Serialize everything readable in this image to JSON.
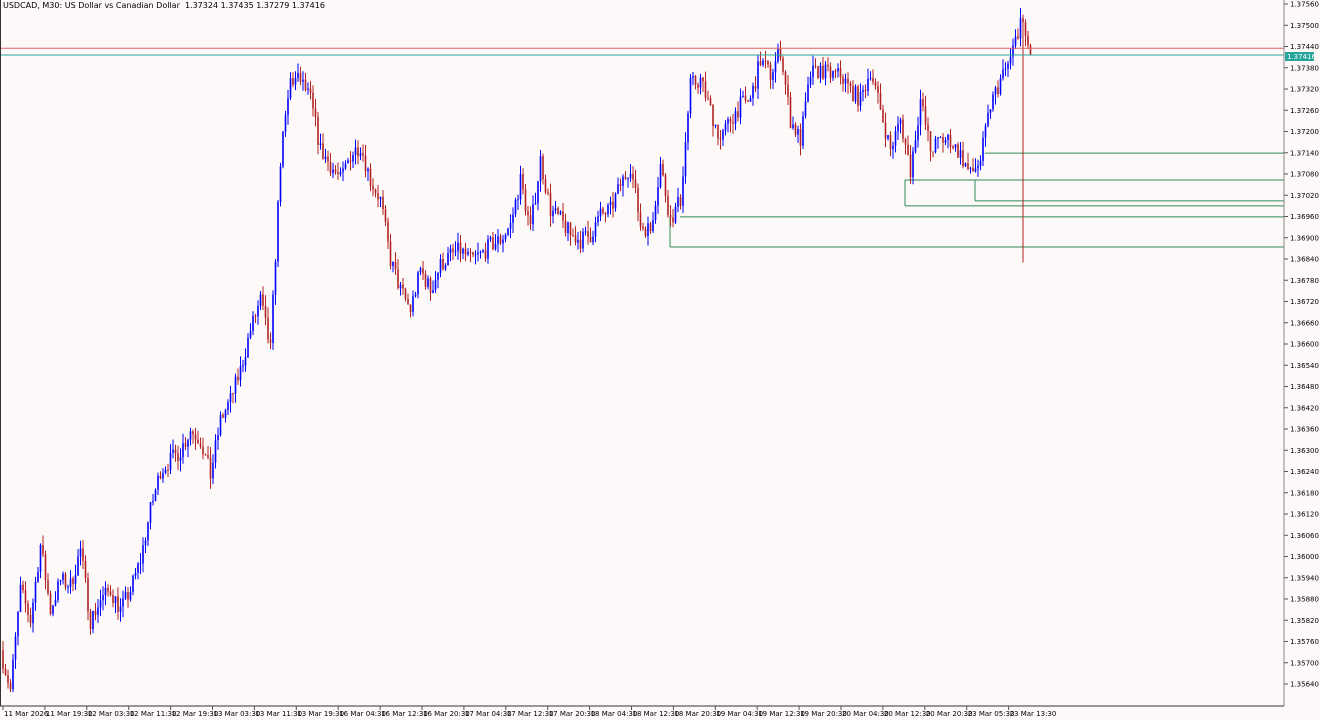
{
  "header": {
    "symbol": "USDCAD, M30:",
    "description": "US Dollar vs Canadian Dollar",
    "ohlc": "1.37324 1.37435 1.37279 1.37416"
  },
  "chart_data": {
    "type": "candlestick",
    "symbol": "USDCAD",
    "timeframe": "M30",
    "ylim": [
      1.3562,
      1.3757
    ],
    "y_ticks": [
      "1.37560",
      "1.37500",
      "1.37440",
      "1.37380",
      "1.37320",
      "1.37260",
      "1.37200",
      "1.37140",
      "1.37080",
      "1.37020",
      "1.36960",
      "1.36900",
      "1.36840",
      "1.36780",
      "1.36720",
      "1.36660",
      "1.36600",
      "1.36540",
      "1.36480",
      "1.36420",
      "1.36360",
      "1.36300",
      "1.36240",
      "1.36180",
      "1.36120",
      "1.36060",
      "1.36000",
      "1.35940",
      "1.35880",
      "1.35820",
      "1.35760",
      "1.35700",
      "1.35640"
    ],
    "x_ticks": [
      "11 Mar 2026",
      "11 Mar 19:30",
      "12 Mar 03:30",
      "12 Mar 11:30",
      "12 Mar 19:30",
      "13 Mar 03:30",
      "13 Mar 11:30",
      "13 Mar 19:30",
      "16 Mar 04:30",
      "16 Mar 12:30",
      "16 Mar 20:30",
      "17 Mar 04:30",
      "17 Mar 12:30",
      "17 Mar 20:30",
      "18 Mar 04:30",
      "18 Mar 12:30",
      "18 Mar 20:30",
      "19 Mar 04:30",
      "19 Mar 12:30",
      "19 Mar 20:30",
      "20 Mar 04:30",
      "20 Mar 12:30",
      "20 Mar 20:30",
      "23 Mar 05:30",
      "23 Mar 13:30"
    ],
    "close_path": [
      1.35736,
      1.35623,
      1.35905,
      1.3582,
      1.36032,
      1.35849,
      1.35933,
      1.35919,
      1.36018,
      1.3582,
      1.35877,
      1.35905,
      1.35849,
      1.35905,
      1.3599,
      1.36131,
      1.36244,
      1.36272,
      1.363,
      1.36357,
      1.36329,
      1.3623,
      1.36385,
      1.36442,
      1.36526,
      1.36639,
      1.36724,
      1.36583,
      1.3712,
      1.37345,
      1.37345,
      1.37289,
      1.37148,
      1.37105,
      1.37063,
      1.37134,
      1.37162,
      1.37063,
      1.37007,
      1.36837,
      1.36752,
      1.36696,
      1.36809,
      1.36752,
      1.36823,
      1.36851,
      1.36865,
      1.36837,
      1.36851,
      1.36879,
      1.36894,
      1.36936,
      1.37063,
      1.36922,
      1.3712,
      1.36978,
      1.3695,
      1.36908,
      1.36894,
      1.36908,
      1.36964,
      1.36978,
      1.37049,
      1.37105,
      1.36936,
      1.36922,
      1.37105,
      1.3695,
      1.37007,
      1.37331,
      1.37345,
      1.37261,
      1.37176,
      1.37232,
      1.37275,
      1.37289,
      1.37402,
      1.3736,
      1.3743,
      1.37232,
      1.37176,
      1.3736,
      1.37374,
      1.3736,
      1.3736,
      1.37317,
      1.37289,
      1.37374,
      1.37261,
      1.37148,
      1.37232,
      1.37091,
      1.37289,
      1.37148,
      1.37176,
      1.37176,
      1.37134,
      1.37077,
      1.3712,
      1.37275,
      1.37345,
      1.37402,
      1.37515,
      1.37416
    ],
    "bid": "1.37416",
    "ask": 1.37435,
    "horizontal_levels": [
      1.37139,
      1.37063,
      1.37004,
      1.3699,
      1.36959,
      1.36874
    ],
    "colors": {
      "up": "#0000ff",
      "down": "#b22222",
      "bid_line": "#26a69a",
      "ask_line": "#e06060",
      "levels": "#2e8b57",
      "background": "#fdf9f8",
      "bid_label_bg": "#26a69a"
    },
    "grid": false
  }
}
